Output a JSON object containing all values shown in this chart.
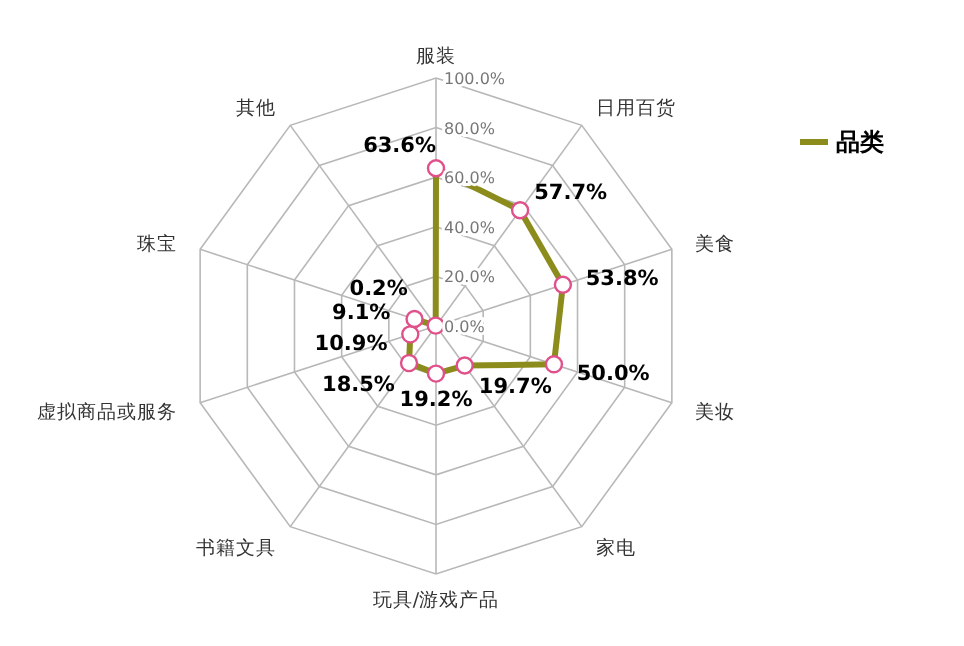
{
  "chart_data": {
    "type": "radar",
    "categories": [
      "服装",
      "日用百货",
      "美食",
      "美妆",
      "家电",
      "玩具/游戏产品",
      "书籍文具",
      "虚拟商品或服务",
      "珠宝",
      "其他"
    ],
    "series": [
      {
        "name": "品类",
        "color": "#8c8c1c",
        "values": [
          63.6,
          57.7,
          53.8,
          50.0,
          19.7,
          19.2,
          18.5,
          10.9,
          9.1,
          0.2
        ],
        "value_labels": [
          "63.6%",
          "57.7%",
          "53.8%",
          "50.0%",
          "19.7%",
          "19.2%",
          "18.5%",
          "10.9%",
          "9.1%",
          "0.2%"
        ]
      }
    ],
    "ylim": [
      0,
      100
    ],
    "yticks": [
      {
        "value": 0,
        "label": "0.0%"
      },
      {
        "value": 20,
        "label": "20.0%"
      },
      {
        "value": 40,
        "label": "40.0%"
      },
      {
        "value": 60,
        "label": "60.0%"
      },
      {
        "value": 80,
        "label": "80.0%"
      },
      {
        "value": 100,
        "label": "100.0%"
      }
    ],
    "grid": true,
    "legend": "right",
    "marker": "circle"
  }
}
